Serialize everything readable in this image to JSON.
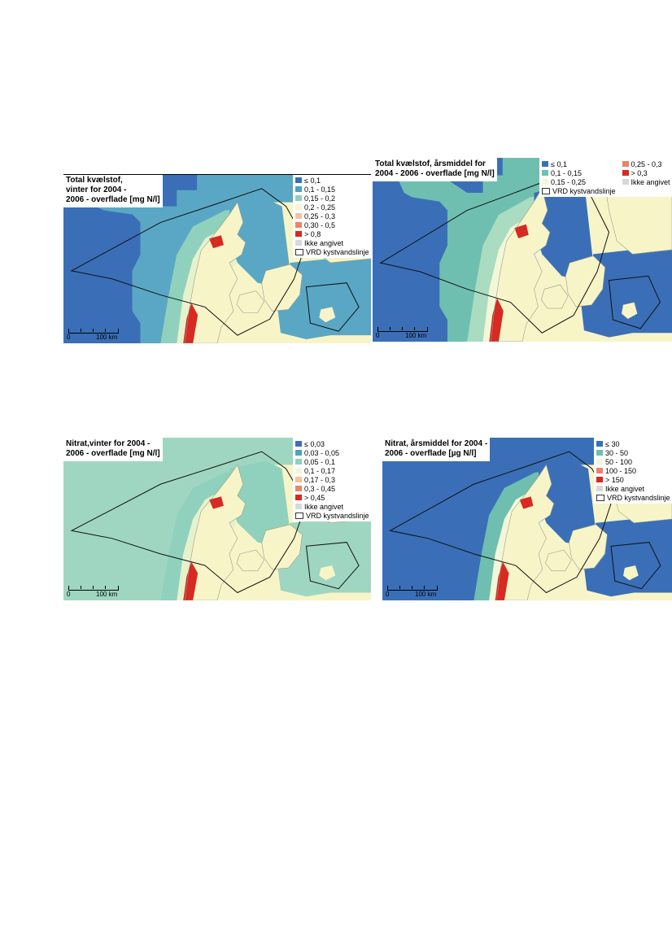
{
  "maps": [
    {
      "id": "tn-winter",
      "title_lines": [
        "Total kvælstof,",
        "vinter for 2004 -",
        "2006 - overflade [mg N/l]"
      ],
      "legend_layout": "one-column",
      "legend": [
        {
          "label": "≤ 0,1",
          "color": "#3a6fb8"
        },
        {
          "label": "0,1 - 0,15",
          "color": "#4f9fc2"
        },
        {
          "label": "0,15 - 0,2",
          "color": "#8fd1bd"
        },
        {
          "label": "0,2 - 0,25",
          "color": "#f2f7d8"
        },
        {
          "label": "0,25 - 0,3",
          "color": "#f5c39b"
        },
        {
          "label": "0,30 - 0,5",
          "color": "#e9836a"
        },
        {
          "label": "> 0,8",
          "color": "#d62a22"
        },
        {
          "label": "Ikke angivet",
          "color": "#d8d8d8"
        },
        {
          "label": "VRD kystvandslinje",
          "color": "#ffffff",
          "outline": true
        }
      ],
      "scale": {
        "left_label": "0",
        "right_label": "100 km"
      },
      "sea_colors": {
        "open_west": "#3a6fb8",
        "north_sea": "#5aa7c5",
        "coastal": "#8fd1bd",
        "near_shore": "#e6f2cc",
        "kattegat": "#5aa7c5",
        "baltic": "#5aa7c5"
      }
    },
    {
      "id": "tn-annual",
      "title_lines": [
        "Total kvælstof, årsmiddel for",
        "2004 - 2006 - overflade [mg N/l]"
      ],
      "legend_layout": "two-column",
      "legend": [
        {
          "label": "≤ 0,1",
          "color": "#3a6fb8"
        },
        {
          "label": "0,25 - 0,3",
          "color": "#e9836a"
        },
        {
          "label": "0,1 - 0,15",
          "color": "#6fbfb0"
        },
        {
          "label": "> 0,3",
          "color": "#d62a22"
        },
        {
          "label": "0,15 - 0,25",
          "color": "#f2f7d8"
        },
        {
          "label": "Ikke angivet",
          "color": "#d8d8d8"
        },
        {
          "label": "VRD kystvandslinje",
          "color": "#ffffff",
          "outline": true
        }
      ],
      "scale": {
        "left_label": "0",
        "right_label": "100 km"
      },
      "sea_colors": {
        "open_west": "#3a6fb8",
        "north_sea": "#6fbfb0",
        "coastal": "#a9dcc0",
        "near_shore": "#f2f7d8",
        "kattegat": "#3a6fb8",
        "baltic": "#3a6fb8"
      }
    },
    {
      "id": "no3-winter",
      "title_lines": [
        "Nitrat,vinter for 2004 -",
        "2006 - overflade [mg N/l]"
      ],
      "legend_layout": "one-column",
      "legend": [
        {
          "label": "≤ 0,03",
          "color": "#3a6fb8"
        },
        {
          "label": "0,03 - 0,05",
          "color": "#4f9fc2"
        },
        {
          "label": "0,05 - 0,1",
          "color": "#8fd1bd"
        },
        {
          "label": "0,1 - 0,17",
          "color": "#f2f7d8"
        },
        {
          "label": "0,17 - 0,3",
          "color": "#f5c39b"
        },
        {
          "label": "0,3 - 0,45",
          "color": "#e9836a"
        },
        {
          "label": "> 0,45",
          "color": "#d62a22"
        },
        {
          "label": "Ikke angivet",
          "color": "#d8d8d8"
        },
        {
          "label": "VRD kystvandslinje",
          "color": "#ffffff",
          "outline": true
        }
      ],
      "scale": {
        "left_label": "0",
        "right_label": "100 km"
      },
      "sea_colors": {
        "open_west": "#9fd6c2",
        "north_sea": "#9fd6c2",
        "coastal": "#8fd1bd",
        "near_shore": "#e6f2cc",
        "kattegat": "#8fd1bd",
        "baltic": "#9fd6c2"
      }
    },
    {
      "id": "no3-annual",
      "title_lines": [
        "Nitrat, årsmiddel for 2004 -",
        "2006 - overflade [µg N/l]"
      ],
      "legend_layout": "one-column",
      "legend": [
        {
          "label": "≤ 30",
          "color": "#3a6fb8"
        },
        {
          "label": "30 - 50",
          "color": "#6fbfb0"
        },
        {
          "label": "50 - 100",
          "color": "#f2f7d8"
        },
        {
          "label": "100 - 150",
          "color": "#e9836a"
        },
        {
          "label": "> 150",
          "color": "#d62a22"
        },
        {
          "label": "Ikke angivet",
          "color": "#d8d8d8"
        },
        {
          "label": "VRD kystvandslinje",
          "color": "#ffffff",
          "outline": true
        }
      ],
      "scale": {
        "left_label": "0",
        "right_label": "100 km"
      },
      "sea_colors": {
        "open_west": "#3a6fb8",
        "north_sea": "#3a6fb8",
        "coastal": "#6fbfb0",
        "near_shore": "#f2f7d8",
        "kattegat": "#3a6fb8",
        "baltic": "#3a6fb8"
      }
    }
  ]
}
